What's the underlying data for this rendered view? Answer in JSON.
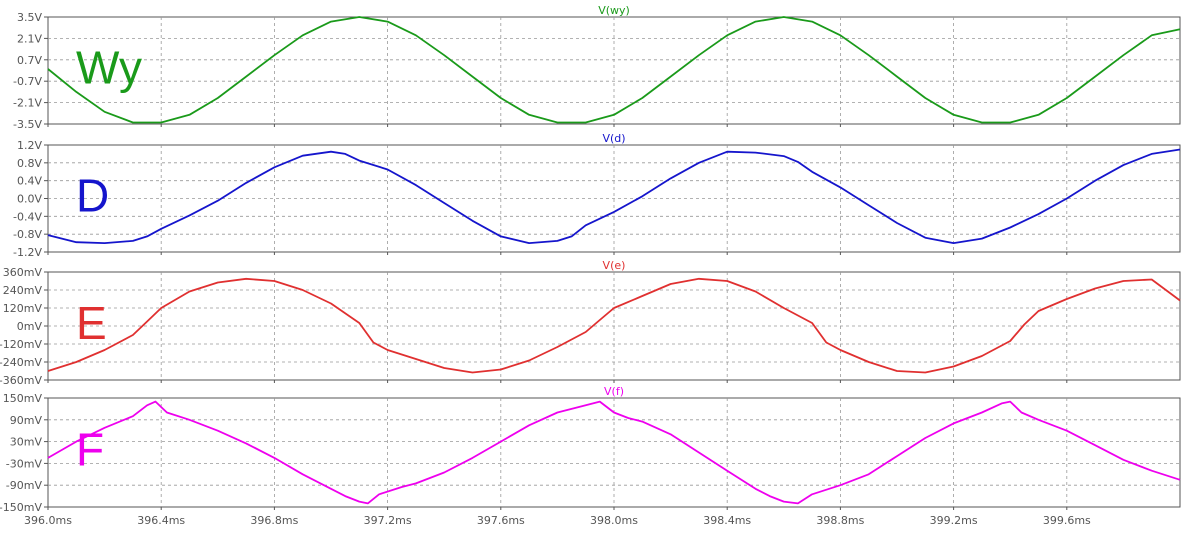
{
  "chart_data": {
    "type": "line",
    "x_unit": "ms",
    "xlim": [
      396.0,
      400.0
    ],
    "x_ticks": [
      396.0,
      396.4,
      396.8,
      397.2,
      397.6,
      398.0,
      398.4,
      398.8,
      399.2,
      399.6
    ],
    "x_tick_labels": [
      "396.0ms",
      "396.4ms",
      "396.8ms",
      "397.2ms",
      "397.6ms",
      "398.0ms",
      "398.4ms",
      "398.8ms",
      "399.2ms",
      "399.6ms"
    ],
    "grid": true,
    "panels": [
      {
        "title": "V(wy)",
        "label": "Wy",
        "color": "#1a9a1a",
        "ylim": [
          -3.5,
          3.5
        ],
        "y_ticks": [
          3.5,
          2.1,
          0.7,
          -0.7,
          -2.1,
          -3.5
        ],
        "y_tick_labels": [
          "3.5V",
          "2.1V",
          "0.7V",
          "-0.7V",
          "-2.1V",
          "-3.5V"
        ],
        "series": [
          {
            "x": [
              396.0,
              396.1,
              396.2,
              396.3,
              396.4,
              396.5,
              396.6,
              396.7,
              396.8,
              396.9,
              397.0,
              397.1,
              397.2,
              397.3,
              397.4,
              397.5,
              397.6,
              397.7,
              397.8,
              397.9,
              398.0,
              398.1,
              398.2,
              398.3,
              398.4,
              398.5,
              398.6,
              398.7,
              398.8,
              398.9,
              399.0,
              399.1,
              399.2,
              399.3,
              399.4,
              399.5,
              399.6,
              399.7,
              399.8,
              399.9,
              400.0
            ],
            "y": [
              0.1,
              -1.4,
              -2.7,
              -3.4,
              -3.4,
              -2.9,
              -1.8,
              -0.4,
              1.0,
              2.3,
              3.2,
              3.5,
              3.2,
              2.3,
              1.0,
              -0.4,
              -1.8,
              -2.9,
              -3.4,
              -3.4,
              -2.9,
              -1.8,
              -0.4,
              1.0,
              2.3,
              3.2,
              3.5,
              3.2,
              2.3,
              1.0,
              -0.4,
              -1.8,
              -2.9,
              -3.4,
              -3.4,
              -2.9,
              -1.8,
              -0.4,
              1.0,
              2.3,
              2.7
            ]
          }
        ]
      },
      {
        "title": "V(d)",
        "label": "D",
        "color": "#1515cc",
        "ylim": [
          -1.2,
          1.2
        ],
        "y_ticks": [
          1.2,
          0.8,
          0.4,
          0.0,
          -0.4,
          -0.8,
          -1.2
        ],
        "y_tick_labels": [
          "1.2V",
          "0.8V",
          "0.4V",
          "0.0V",
          "-0.4V",
          "-0.8V",
          "-1.2V"
        ],
        "series": [
          {
            "x": [
              396.0,
              396.1,
              396.2,
              396.3,
              396.35,
              396.4,
              396.5,
              396.6,
              396.7,
              396.8,
              396.9,
              397.0,
              397.05,
              397.1,
              397.2,
              397.3,
              397.4,
              397.5,
              397.6,
              397.7,
              397.8,
              397.85,
              397.9,
              398.0,
              398.1,
              398.2,
              398.3,
              398.4,
              398.5,
              398.6,
              398.65,
              398.7,
              398.8,
              398.9,
              399.0,
              399.1,
              399.2,
              399.3,
              399.4,
              399.5,
              399.6,
              399.7,
              399.8,
              399.9,
              400.0
            ],
            "y": [
              -0.82,
              -0.98,
              -1.0,
              -0.95,
              -0.85,
              -0.68,
              -0.38,
              -0.05,
              0.35,
              0.7,
              0.96,
              1.05,
              1.0,
              0.85,
              0.65,
              0.3,
              -0.1,
              -0.5,
              -0.85,
              -1.0,
              -0.95,
              -0.85,
              -0.6,
              -0.3,
              0.05,
              0.45,
              0.8,
              1.05,
              1.03,
              0.95,
              0.82,
              0.6,
              0.25,
              -0.15,
              -0.55,
              -0.88,
              -1.0,
              -0.9,
              -0.65,
              -0.35,
              0.0,
              0.4,
              0.75,
              1.0,
              1.1
            ]
          }
        ]
      },
      {
        "title": "V(e)",
        "label": "E",
        "color": "#e03030",
        "ylim": [
          -360,
          360
        ],
        "y_ticks": [
          360,
          240,
          120,
          0,
          -120,
          -240,
          -360
        ],
        "y_tick_labels": [
          "360mV",
          "240mV",
          "120mV",
          "0mV",
          "-120mV",
          "-240mV",
          "-360mV"
        ],
        "series": [
          {
            "x": [
              396.0,
              396.1,
              396.2,
              396.3,
              396.35,
              396.4,
              396.5,
              396.6,
              396.7,
              396.8,
              396.9,
              397.0,
              397.1,
              397.15,
              397.2,
              397.3,
              397.4,
              397.5,
              397.6,
              397.7,
              397.8,
              397.9,
              397.95,
              398.0,
              398.1,
              398.2,
              398.3,
              398.4,
              398.5,
              398.6,
              398.7,
              398.75,
              398.8,
              398.9,
              399.0,
              399.1,
              399.2,
              399.3,
              399.4,
              399.45,
              399.5,
              399.6,
              399.7,
              399.8,
              399.9,
              400.0
            ],
            "y": [
              -300,
              -240,
              -160,
              -60,
              30,
              120,
              230,
              290,
              315,
              300,
              240,
              150,
              20,
              -110,
              -160,
              -220,
              -280,
              -310,
              -290,
              -230,
              -140,
              -40,
              40,
              120,
              200,
              280,
              315,
              300,
              230,
              120,
              20,
              -110,
              -160,
              -240,
              -300,
              -310,
              -270,
              -200,
              -100,
              10,
              100,
              180,
              250,
              300,
              310,
              170
            ]
          }
        ]
      },
      {
        "title": "V(f)",
        "label": "F",
        "color": "#ee00ee",
        "ylim": [
          -150,
          150
        ],
        "y_ticks": [
          150,
          90,
          30,
          -30,
          -90,
          -150
        ],
        "y_tick_labels": [
          "150mV",
          "90mV",
          "30mV",
          "-30mV",
          "-90mV",
          "-150mV"
        ],
        "series": [
          {
            "x": [
              396.0,
              396.1,
              396.2,
              396.3,
              396.35,
              396.38,
              396.42,
              396.5,
              396.6,
              396.7,
              396.8,
              396.9,
              397.0,
              397.05,
              397.1,
              397.13,
              397.17,
              397.25,
              397.3,
              397.4,
              397.5,
              397.6,
              397.7,
              397.8,
              397.9,
              397.95,
              398.0,
              398.05,
              398.1,
              398.2,
              398.3,
              398.4,
              398.5,
              398.55,
              398.6,
              398.65,
              398.7,
              398.8,
              398.9,
              399.0,
              399.1,
              399.2,
              399.3,
              399.37,
              399.4,
              399.44,
              399.5,
              399.6,
              399.7,
              399.8,
              399.9,
              400.0
            ],
            "y": [
              -15,
              30,
              68,
              100,
              130,
              140,
              110,
              90,
              60,
              25,
              -15,
              -60,
              -100,
              -120,
              -135,
              -140,
              -115,
              -95,
              -85,
              -55,
              -15,
              30,
              75,
              110,
              130,
              140,
              110,
              95,
              85,
              50,
              0,
              -50,
              -100,
              -120,
              -135,
              -140,
              -115,
              -90,
              -60,
              -10,
              40,
              80,
              110,
              135,
              140,
              110,
              90,
              60,
              20,
              -20,
              -50,
              -75
            ]
          }
        ]
      }
    ]
  }
}
